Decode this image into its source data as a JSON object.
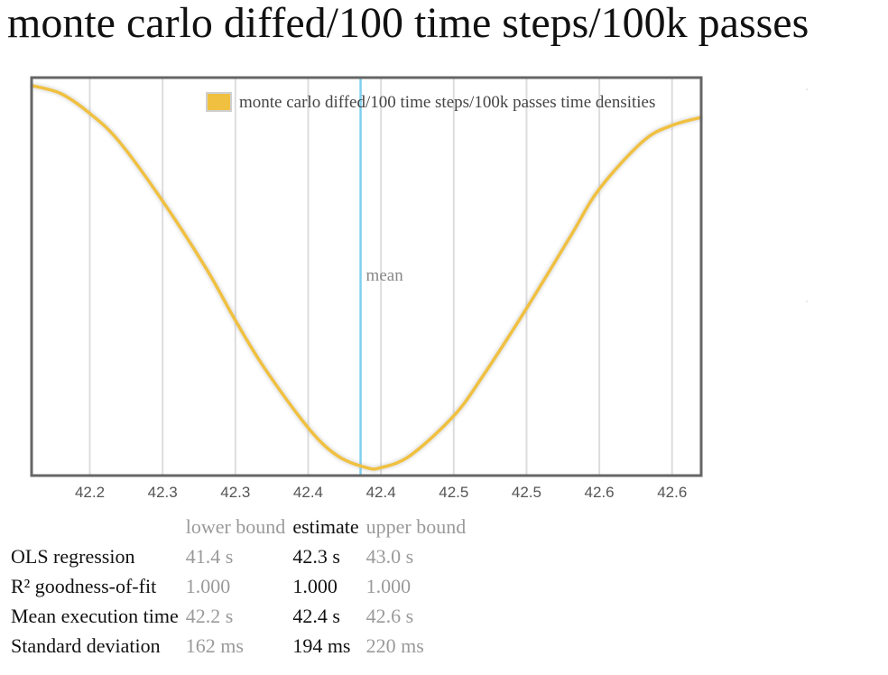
{
  "title": "monte carlo diffed/100 time steps/100k passes",
  "chart_data": {
    "type": "line",
    "legend": "monte carlo diffed/100 time steps/100k passes time densities",
    "legend_position": "top-right",
    "x_ticks": [
      "42.2",
      "42.3",
      "42.3",
      "42.4",
      "42.4",
      "42.5",
      "42.5",
      "42.6",
      "42.6"
    ],
    "x_tick_values": [
      42.2,
      42.25,
      42.3,
      42.35,
      42.4,
      42.45,
      42.5,
      42.55,
      42.6
    ],
    "xlim": [
      42.16,
      42.62
    ],
    "ylim": [
      0,
      1
    ],
    "grid": true,
    "mean_label": "mean",
    "mean_x": 42.386,
    "series": [
      {
        "color": "#f0c040",
        "x": [
          42.16,
          42.18,
          42.2,
          42.22,
          42.25,
          42.28,
          42.3,
          42.32,
          42.35,
          42.37,
          42.39,
          42.4,
          42.42,
          42.45,
          42.47,
          42.5,
          42.53,
          42.55,
          42.58,
          42.6,
          42.62
        ],
        "y": [
          0.98,
          0.96,
          0.91,
          0.84,
          0.69,
          0.52,
          0.39,
          0.27,
          0.12,
          0.05,
          0.02,
          0.02,
          0.05,
          0.15,
          0.25,
          0.42,
          0.6,
          0.72,
          0.84,
          0.88,
          0.9
        ]
      }
    ]
  },
  "stats": {
    "headers": [
      "lower bound",
      "estimate",
      "upper bound"
    ],
    "rows": [
      {
        "label": "OLS regression",
        "lower": "41.4 s",
        "estimate": "42.3 s",
        "upper": "43.0 s"
      },
      {
        "label": "R² goodness-of-fit",
        "lower": "1.000",
        "estimate": "1.000",
        "upper": "1.000"
      },
      {
        "label": "Mean execution time",
        "lower": "42.2 s",
        "estimate": "42.4 s",
        "upper": "42.6 s"
      },
      {
        "label": "Standard deviation",
        "lower": "162 ms",
        "estimate": "194 ms",
        "upper": "220 ms"
      }
    ]
  },
  "colors": {
    "series": "#f0c040",
    "mean_line": "#7fd0f0",
    "grid": "#dddddd",
    "frame": "#666666"
  }
}
